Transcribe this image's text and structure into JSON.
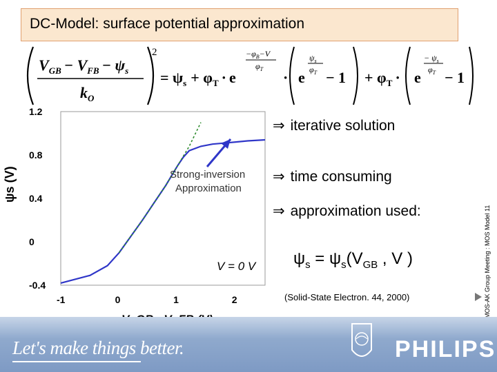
{
  "title": "DC-Model: surface potential approximation",
  "formula": {
    "lhs_top": "V",
    "lhs_gb_sub": "GB",
    "lhs_minus_vfb": "− V",
    "lhs_fb_sub": "FB",
    "lhs_minus_psi": "− ψ",
    "lhs_s_sub": "s",
    "lhs_denominator": "k",
    "lhs_den_sub": "O",
    "power": "2",
    "rhs_term1": "= ψ",
    "rhs_term1_sub": "s",
    "rhs_plus_phi": "+ φ",
    "rhs_T_sub": "T",
    "rhs_exp_top": "−φ",
    "rhs_exp_B": "B",
    "rhs_exp_minusV": "−V",
    "rhs_exp_bottom": "φ",
    "rhs_exp_bottom_T": "T",
    "rhs_paren1_num": "ψ",
    "rhs_paren1_num_sub": "s",
    "rhs_paren1_den": "φ",
    "rhs_paren1_den_sub": "T",
    "minus_one": "− 1",
    "rhs_paren2_num": "− ψ",
    "rhs_paren2_num_sub": "s",
    "e": "e"
  },
  "chart_data": {
    "type": "line",
    "xlabel": "V_GB - V_FB  (V)",
    "ylabel": "ψs (V)",
    "xlim": [
      -1,
      2.5
    ],
    "ylim": [
      -0.4,
      1.2
    ],
    "x_ticks": [
      "-1",
      "0",
      "1",
      "2"
    ],
    "y_ticks": [
      "1.2",
      "0.8",
      "0.4",
      "0",
      "-0.4"
    ],
    "series": [
      {
        "x": [
          -1,
          -0.5,
          -0.2,
          0,
          0.2,
          0.4,
          0.6,
          0.8,
          1.0,
          1.1,
          1.2,
          1.4,
          1.6,
          1.8,
          2.0,
          2.2,
          2.5
        ],
        "y": [
          -0.38,
          -0.31,
          -0.22,
          -0.1,
          0.05,
          0.2,
          0.36,
          0.52,
          0.7,
          0.78,
          0.84,
          0.88,
          0.9,
          0.91,
          0.92,
          0.93,
          0.94
        ],
        "color": "#2f36c8"
      },
      {
        "x": [
          0,
          0.2,
          0.4,
          0.6,
          0.8,
          1.0,
          1.2,
          1.4
        ],
        "y": [
          -0.1,
          0.05,
          0.2,
          0.36,
          0.52,
          0.7,
          0.88,
          1.1
        ],
        "color": "#2e8b2e",
        "dashed": true
      }
    ],
    "annotation_line1": "Strong-inversion",
    "annotation_line2": "Approximation",
    "condition_label": "V = 0 V"
  },
  "bullets": [
    {
      "arrow": "⇒",
      "text": "iterative solution"
    },
    {
      "arrow": "⇒",
      "text": "time consuming"
    },
    {
      "arrow": "⇒",
      "text": "approximation used:"
    }
  ],
  "psi_equation": {
    "psi": "ψ",
    "s": "s",
    "eq": " = ψ",
    "s2": "s",
    "args_open": "(V",
    "gb": "GB",
    "args_close": " , V )"
  },
  "reference": "(Solid-State Electron. 44, 2000)",
  "side_label": "MOS-AK Group Meeting : MOS Model 11",
  "footer": {
    "slogan": "Let's make things better.",
    "brand": "PHILIPS"
  }
}
